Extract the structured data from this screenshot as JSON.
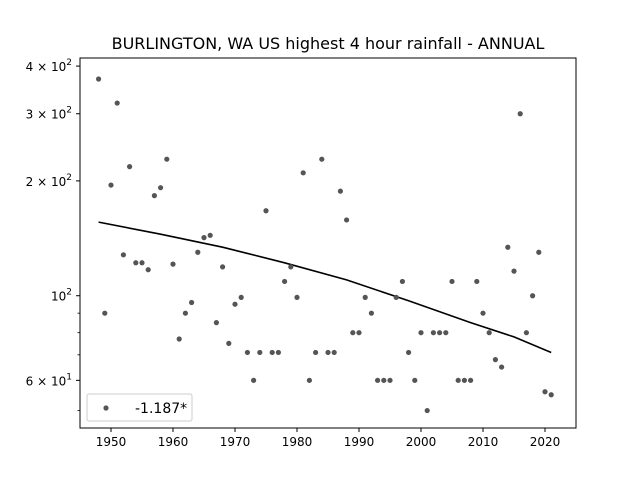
{
  "chart_data": {
    "type": "scatter",
    "title": "BURLINGTON, WA US highest 4 hour rainfall - ANNUAL",
    "xlabel": "",
    "ylabel": "",
    "xlim": [
      1945,
      2025
    ],
    "ylim": [
      45,
      420
    ],
    "y_scale": "log",
    "grid": false,
    "x_ticks": [
      {
        "value": 1950,
        "label": "1950"
      },
      {
        "value": 1960,
        "label": "1960"
      },
      {
        "value": 1970,
        "label": "1970"
      },
      {
        "value": 1980,
        "label": "1980"
      },
      {
        "value": 1990,
        "label": "1990"
      },
      {
        "value": 2000,
        "label": "2000"
      },
      {
        "value": 2010,
        "label": "2010"
      },
      {
        "value": 2020,
        "label": "2020"
      }
    ],
    "y_major_ticks": [
      {
        "value": 60,
        "base": "6 × 10",
        "exp": "1"
      },
      {
        "value": 100,
        "base": "10",
        "exp": "2"
      },
      {
        "value": 200,
        "base": "2 × 10",
        "exp": "2"
      },
      {
        "value": 300,
        "base": "3 × 10",
        "exp": "2"
      },
      {
        "value": 400,
        "base": "4 × 10",
        "exp": "2"
      }
    ],
    "y_minor_ticks": [
      50,
      70,
      80,
      90
    ],
    "legend": {
      "position": "lower-left",
      "label": "-1.187*"
    },
    "marker_color": "#555555",
    "trend_color": "#000000",
    "series": [
      {
        "kind": "scatter",
        "x": [
          1948,
          1949,
          1950,
          1951,
          1952,
          1953,
          1954,
          1955,
          1956,
          1957,
          1958,
          1959,
          1960,
          1961,
          1962,
          1963,
          1964,
          1965,
          1966,
          1967,
          1968,
          1969,
          1970,
          1971,
          1972,
          1973,
          1974,
          1975,
          1976,
          1977,
          1978,
          1979,
          1980,
          1981,
          1982,
          1983,
          1984,
          1985,
          1986,
          1987,
          1988,
          1989,
          1990,
          1991,
          1992,
          1993,
          1994,
          1995,
          1996,
          1997,
          1998,
          1999,
          2000,
          2001,
          2002,
          2003,
          2004,
          2005,
          2006,
          2007,
          2008,
          2009,
          2010,
          2011,
          2012,
          2013,
          2014,
          2015,
          2016,
          2017,
          2018,
          2019,
          2020,
          2021
        ],
        "y": [
          370,
          90,
          195,
          320,
          128,
          218,
          122,
          122,
          117,
          183,
          192,
          228,
          121,
          77,
          90,
          96,
          130,
          142,
          144,
          85,
          119,
          75,
          95,
          99,
          71,
          60,
          71,
          167,
          71,
          71,
          109,
          119,
          99,
          210,
          60,
          71,
          228,
          71,
          71,
          188,
          158,
          80,
          80,
          99,
          90,
          60,
          60,
          60,
          99,
          109,
          71,
          60,
          80,
          50,
          80,
          80,
          80,
          109,
          60,
          60,
          60,
          109,
          90,
          80,
          68,
          65,
          134,
          116,
          300,
          80,
          100,
          130,
          56,
          55
        ]
      },
      {
        "kind": "trend",
        "x": [
          1948,
          1958,
          1968,
          1978,
          1988,
          1998,
          2008,
          2015,
          2021
        ],
        "y": [
          156,
          145,
          134,
          122,
          110,
          97,
          85,
          78,
          71
        ]
      }
    ]
  }
}
